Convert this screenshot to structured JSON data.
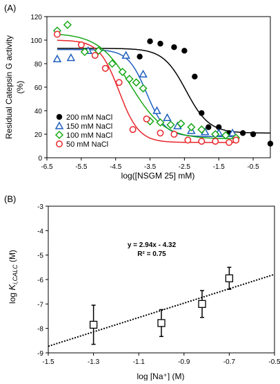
{
  "chart_data": [
    {
      "panel_label": "(A)",
      "type": "scatter",
      "xlabel": "log([NSGM 25] mM)",
      "ylabel": "Residual Catepsin G activity",
      "ylabel_unit": "(%)",
      "xlim": [
        -6.5,
        0
      ],
      "ylim": [
        0,
        120
      ],
      "xticks": [
        -6.5,
        -5.5,
        -4.5,
        -3.5,
        -2.5,
        -1.5,
        -0.5
      ],
      "yticks": [
        0,
        20,
        40,
        60,
        80,
        100,
        120
      ],
      "legend_position": "bottom-left",
      "series": [
        {
          "name": "200 mM NaCl",
          "color": "#000000",
          "marker": "circle-filled",
          "x": [
            -3.8,
            -3.5,
            -3.2,
            -2.8,
            -2.5,
            -2.2,
            -2.0,
            -1.8,
            -1.5,
            -1.2,
            -0.8,
            -0.5,
            0.0
          ],
          "y": [
            86,
            99,
            97,
            94,
            91,
            69,
            38,
            26,
            26,
            21,
            21,
            20,
            12
          ],
          "fit": {
            "top": 93,
            "bottom": 21,
            "logEC50": -2.45,
            "hill": 1.3
          }
        },
        {
          "name": "150 mM NaCl",
          "color": "#1f5fbf",
          "marker": "triangle-open",
          "x": [
            -6.2,
            -5.8,
            -5.3,
            -4.2,
            -3.7,
            -3.3,
            -3.0,
            -2.7,
            -2.3,
            -1.9,
            -1.5,
            -1.1
          ],
          "y": [
            84,
            85,
            91,
            87,
            71,
            40,
            34,
            27,
            23,
            22,
            21,
            21
          ],
          "fit": {
            "top": 92,
            "bottom": 18,
            "logEC50": -3.6,
            "hill": 1.6
          }
        },
        {
          "name": "100 mM NaCl",
          "color": "#18a818",
          "marker": "diamond-open",
          "x": [
            -6.2,
            -5.9,
            -5.4,
            -5.0,
            -4.6,
            -4.3,
            -4.1,
            -3.9,
            -3.7,
            -3.5,
            -3.2,
            -2.9,
            -2.6,
            -2.3,
            -2.0,
            -1.6,
            -1.3,
            -1.0
          ],
          "y": [
            108,
            113,
            90,
            91,
            80,
            73,
            67,
            64,
            59,
            31,
            30,
            28,
            29,
            26,
            24,
            20,
            19,
            17
          ],
          "fit": {
            "top": 106,
            "bottom": 16,
            "logEC50": -4.05,
            "hill": 0.9
          }
        },
        {
          "name": "50 mM NaCl",
          "color": "#e8252a",
          "marker": "circle-open",
          "x": [
            -6.2,
            -5.5,
            -5.1,
            -4.8,
            -4.4,
            -4.0,
            -3.6,
            -3.2,
            -2.8,
            -2.4,
            -2.0,
            -1.6,
            -1.2,
            -1.0
          ],
          "y": [
            105,
            96,
            87,
            76,
            64,
            24,
            33,
            21,
            20,
            15,
            14,
            14,
            13,
            15
          ],
          "fit": {
            "top": 100,
            "bottom": 13,
            "logEC50": -4.4,
            "hill": 1.5
          }
        }
      ]
    },
    {
      "panel_label": "(B)",
      "type": "scatter",
      "xlabel": "log [Na⁺] (M)",
      "ylabel_prefix": "log ",
      "ylabel_k": "K",
      "ylabel_sub": "i,CALC",
      "ylabel_suffix": " (M)",
      "xlim": [
        -1.5,
        -0.5
      ],
      "ylim": [
        -9,
        -3
      ],
      "xticks": [
        -1.5,
        -1.3,
        -1.1,
        -0.9,
        -0.7,
        -0.5
      ],
      "yticks": [
        -9,
        -8,
        -7,
        -6,
        -5,
        -4,
        -3
      ],
      "equation": "y = 2.94x - 4.32",
      "r_squared": "R² = 0.75",
      "trendline": {
        "slope": 2.94,
        "intercept": -4.32,
        "style": "dotted"
      },
      "points": [
        {
          "x": -1.3,
          "y": -7.85,
          "err": 0.8
        },
        {
          "x": -1.0,
          "y": -7.78,
          "err": 0.55
        },
        {
          "x": -0.82,
          "y": -7.0,
          "err": 0.55
        },
        {
          "x": -0.7,
          "y": -5.95,
          "err": 0.45
        }
      ]
    }
  ]
}
